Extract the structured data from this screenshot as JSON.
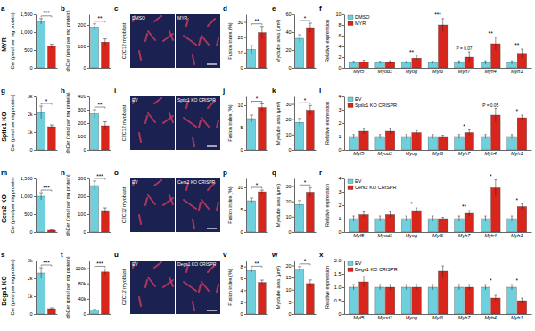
{
  "chart_data": [
    {
      "panel": "a",
      "type": "bar",
      "ylabel": "Cer (pmol per mg protein)",
      "categories": [
        null,
        null
      ],
      "values": [
        1300,
        600
      ],
      "errors": [
        80,
        60
      ],
      "colors": [
        "#6dd0dc",
        "#d9261c"
      ],
      "ylim": [
        0,
        1500
      ],
      "yticks": [
        0,
        500,
        {
          "value": 1000,
          "label": "1,000"
        },
        {
          "value": 1500,
          "label": "1,500"
        }
      ],
      "annotations": [
        {
          "text": "***"
        }
      ]
    },
    {
      "panel": "b",
      "type": "bar",
      "ylabel": "dhCer (pmol per mg protein)",
      "categories": [
        null,
        null
      ],
      "values": [
        190,
        120
      ],
      "errors": [
        15,
        15
      ],
      "colors": [
        "#6dd0dc",
        "#d9261c"
      ],
      "ylim": [
        0,
        250
      ],
      "yticks": [
        0,
        100,
        200
      ],
      "annotations": [
        {
          "text": "**"
        }
      ]
    },
    {
      "panel": "d",
      "type": "bar",
      "ylabel": "Fusion index (%)",
      "categories": [
        null,
        null
      ],
      "values": [
        12,
        23
      ],
      "errors": [
        2.5,
        4
      ],
      "colors": [
        "#6dd0dc",
        "#d9261c"
      ],
      "ylim": [
        0,
        35
      ],
      "yticks": [
        0,
        10,
        20,
        30
      ],
      "annotations": [
        {
          "text": "**"
        }
      ]
    },
    {
      "panel": "e",
      "type": "bar",
      "ylabel": "Myotube area (μm²)",
      "categories": [
        null,
        null
      ],
      "values": [
        33,
        45
      ],
      "errors": [
        4,
        5
      ],
      "colors": [
        "#6dd0dc",
        "#d9261c"
      ],
      "ylim": [
        0,
        60
      ],
      "yticks": [
        0,
        20,
        40,
        60
      ],
      "annotations": [
        {
          "text": "*"
        }
      ]
    },
    {
      "panel": "f",
      "type": "bar",
      "ylabel": "Relative expression",
      "categories": [
        "Myf5",
        "Myod1",
        "Myog",
        "Myf6",
        "Myh7",
        "Myh4",
        "Myh1"
      ],
      "series": [
        {
          "name": "DMSO",
          "color": "#6dd0dc",
          "values": [
            1,
            1,
            1,
            1,
            1,
            1,
            1
          ],
          "errors": [
            0.2,
            0.2,
            0.2,
            0.2,
            0.3,
            0.3,
            0.3
          ]
        },
        {
          "name": "MYR",
          "color": "#d9261c",
          "values": [
            1.1,
            1.0,
            1.8,
            8,
            2,
            4.5,
            2.7
          ],
          "errors": [
            0.3,
            0.3,
            0.4,
            1.2,
            1.0,
            1.2,
            0.8
          ]
        }
      ],
      "ylim": [
        0,
        10
      ],
      "yticks": [
        0,
        2,
        4,
        6,
        8,
        10
      ],
      "legend": "upper left",
      "annotations": [
        {
          "category": "Myog",
          "text": "**"
        },
        {
          "category": "Myf6",
          "text": "***"
        },
        {
          "category": "Myh7",
          "text": "P = 0.07"
        },
        {
          "category": "Myh4",
          "text": "**"
        },
        {
          "category": "Myh1",
          "text": "**"
        }
      ]
    },
    {
      "panel": "g",
      "type": "bar",
      "ylabel": "Cer (pmol per mg protein)",
      "categories": [
        null,
        null
      ],
      "values": [
        2100,
        1300
      ],
      "errors": [
        350,
        100
      ],
      "colors": [
        "#6dd0dc",
        "#d9261c"
      ],
      "ylim": [
        0,
        3000
      ],
      "yticks": [
        0,
        {
          "value": 1000,
          "label": "1k"
        },
        {
          "value": 2000,
          "label": "2k"
        },
        {
          "value": 3000,
          "label": "3k"
        }
      ],
      "annotations": [
        {
          "text": "*"
        }
      ]
    },
    {
      "panel": "h",
      "type": "bar",
      "ylabel": "dhCer (pmol per mg protein)",
      "categories": [
        null,
        null
      ],
      "values": [
        270,
        180
      ],
      "errors": [
        30,
        30
      ],
      "colors": [
        "#6dd0dc",
        "#d9261c"
      ],
      "ylim": [
        0,
        400
      ],
      "yticks": [
        0,
        100,
        200,
        300,
        400
      ],
      "annotations": [
        {
          "text": "**"
        }
      ]
    },
    {
      "panel": "j",
      "type": "bar",
      "ylabel": "Fusion index (%)",
      "categories": [
        null,
        null
      ],
      "values": [
        7,
        9.5
      ],
      "errors": [
        0.8,
        0.8
      ],
      "colors": [
        "#6dd0dc",
        "#d9261c"
      ],
      "ylim": [
        0,
        12
      ],
      "yticks": [
        0,
        5,
        10
      ],
      "annotations": [
        {
          "text": "*"
        }
      ]
    },
    {
      "panel": "k",
      "type": "bar",
      "ylabel": "Myotube area (μm²)",
      "categories": [
        null,
        null
      ],
      "values": [
        18,
        26
      ],
      "errors": [
        2.5,
        3
      ],
      "colors": [
        "#6dd0dc",
        "#d9261c"
      ],
      "ylim": [
        0,
        35
      ],
      "yticks": [
        0,
        10,
        20,
        30
      ],
      "annotations": [
        {
          "text": "*"
        }
      ]
    },
    {
      "panel": "l",
      "type": "bar",
      "ylabel": "Relative expression",
      "categories": [
        "Myf5",
        "Myod1",
        "Myog",
        "Myf6",
        "Myh7",
        "Myh4",
        "Myh1"
      ],
      "series": [
        {
          "name": "EV",
          "color": "#6dd0dc",
          "values": [
            1,
            1,
            1,
            1,
            1,
            1,
            1
          ],
          "errors": [
            0.15,
            0.15,
            0.15,
            0.15,
            0.15,
            0.15,
            0.15
          ]
        },
        {
          "name": "Sptlc1 KO CRISPR",
          "color": "#d9261c",
          "values": [
            1.4,
            1.4,
            1.3,
            1.0,
            1.3,
            2.6,
            2.4
          ],
          "errors": [
            0.2,
            0.2,
            0.15,
            0.1,
            0.2,
            0.5,
            0.2
          ]
        }
      ],
      "ylim": [
        0,
        4
      ],
      "yticks": [
        0,
        1,
        2,
        3,
        4
      ],
      "legend": "upper left",
      "annotations": [
        {
          "category": "Myh7",
          "text": "*"
        },
        {
          "category": "Myh4",
          "text": "P = 0.05"
        },
        {
          "category": "Myh1",
          "text": "*"
        }
      ]
    },
    {
      "panel": "m",
      "type": "bar",
      "ylabel": "Cer (pmol per mg protein)",
      "categories": [
        null,
        null
      ],
      "values": [
        1000,
        50
      ],
      "errors": [
        100,
        10
      ],
      "colors": [
        "#6dd0dc",
        "#d9261c"
      ],
      "ylim": [
        0,
        1500
      ],
      "yticks": [
        0,
        500,
        {
          "value": 1000,
          "label": "1,000"
        },
        {
          "value": 1500,
          "label": "1,500"
        }
      ],
      "annotations": [
        {
          "text": "***"
        }
      ]
    },
    {
      "panel": "n",
      "type": "bar",
      "ylabel": "dhCer (pmol per mg protein)",
      "categories": [
        null,
        null
      ],
      "values": [
        260,
        120
      ],
      "errors": [
        25,
        15
      ],
      "colors": [
        "#6dd0dc",
        "#d9261c"
      ],
      "ylim": [
        0,
        300
      ],
      "yticks": [
        0,
        100,
        200,
        300
      ],
      "annotations": [
        {
          "text": "***"
        }
      ]
    },
    {
      "panel": "p",
      "type": "bar",
      "ylabel": "Fusion index (%)",
      "categories": [
        null,
        null
      ],
      "values": [
        7,
        9
      ],
      "errors": [
        0.6,
        0.4
      ],
      "colors": [
        "#6dd0dc",
        "#d9261c"
      ],
      "ylim": [
        0,
        12
      ],
      "yticks": [
        0,
        5,
        10
      ],
      "annotations": [
        {
          "text": "*"
        }
      ]
    },
    {
      "panel": "q",
      "type": "bar",
      "ylabel": "Myotube area (μm²)",
      "categories": [
        null,
        null
      ],
      "values": [
        18,
        26
      ],
      "errors": [
        2.5,
        3
      ],
      "colors": [
        "#6dd0dc",
        "#d9261c"
      ],
      "ylim": [
        0,
        35
      ],
      "yticks": [
        0,
        10,
        20,
        30
      ],
      "annotations": [
        {
          "text": "*"
        }
      ]
    },
    {
      "panel": "r",
      "type": "bar",
      "ylabel": "Relative expression",
      "categories": [
        "Myf5",
        "Myod1",
        "Myog",
        "Myf6",
        "Myh7",
        "Myh4",
        "Myh1"
      ],
      "series": [
        {
          "name": "EV",
          "color": "#6dd0dc",
          "values": [
            1,
            1,
            1,
            1,
            1,
            1,
            1
          ],
          "errors": [
            0.2,
            0.2,
            0.2,
            0.2,
            0.2,
            0.2,
            0.2
          ]
        },
        {
          "name": "Cers2 KO CRISPR",
          "color": "#d9261c",
          "values": [
            1.3,
            1.3,
            1.6,
            1.0,
            1.4,
            3.3,
            1.9
          ],
          "errors": [
            0.2,
            0.2,
            0.2,
            0.1,
            0.2,
            0.6,
            0.2
          ]
        }
      ],
      "ylim": [
        0,
        4
      ],
      "yticks": [
        0,
        1,
        2,
        3,
        4
      ],
      "legend": "upper left",
      "annotations": [
        {
          "category": "Myog",
          "text": "*"
        },
        {
          "category": "Myh7",
          "text": "**"
        },
        {
          "category": "Myh4",
          "text": "*"
        },
        {
          "category": "Myh1",
          "text": "*"
        }
      ]
    },
    {
      "panel": "s",
      "type": "bar",
      "ylabel": "Cer (pmol per mg protein)",
      "categories": [
        null,
        null
      ],
      "values": [
        2300,
        300
      ],
      "errors": [
        300,
        50
      ],
      "colors": [
        "#6dd0dc",
        "#d9261c"
      ],
      "ylim": [
        0,
        3000
      ],
      "yticks": [
        0,
        {
          "value": 1000,
          "label": "1k"
        },
        {
          "value": 2000,
          "label": "2k"
        },
        {
          "value": 3000,
          "label": "3k"
        }
      ],
      "annotations": [
        {
          "text": "***"
        }
      ]
    },
    {
      "panel": "t",
      "type": "bar",
      "ylabel": "dhCer (pmol per mg protein)",
      "categories": [
        null,
        null
      ],
      "values": [
        10000,
        110000
      ],
      "errors": [
        2000,
        8000
      ],
      "colors": [
        "#6dd0dc",
        "#d9261c"
      ],
      "ylim": [
        0,
        140000
      ],
      "yticks": [
        0,
        {
          "value": 40000,
          "label": "40k"
        },
        {
          "value": 80000,
          "label": "80k"
        },
        {
          "value": 120000,
          "label": "120k"
        }
      ],
      "annotations": [
        {
          "text": "***"
        }
      ]
    },
    {
      "panel": "v",
      "type": "bar",
      "ylabel": "Fusion index (%)",
      "categories": [
        null,
        null
      ],
      "values": [
        7.3,
        5.3
      ],
      "errors": [
        0.3,
        0.4
      ],
      "colors": [
        "#6dd0dc",
        "#d9261c"
      ],
      "ylim": [
        0,
        9
      ],
      "yticks": [
        0,
        2,
        4,
        6,
        8
      ],
      "annotations": [
        {
          "text": "**"
        }
      ]
    },
    {
      "panel": "w",
      "type": "bar",
      "ylabel": "Myotube area (μm²)",
      "categories": [
        null,
        null
      ],
      "values": [
        18.5,
        12.5
      ],
      "errors": [
        1,
        1.5
      ],
      "colors": [
        "#6dd0dc",
        "#d9261c"
      ],
      "ylim": [
        0,
        22
      ],
      "yticks": [
        0,
        5,
        10,
        15,
        20
      ],
      "annotations": [
        {
          "text": "*"
        }
      ]
    },
    {
      "panel": "x",
      "type": "bar",
      "ylabel": "Relative expression",
      "categories": [
        "Myf5",
        "Myod1",
        "Myog",
        "Myf6",
        "Myh7",
        "Myh4",
        "Myh1"
      ],
      "series": [
        {
          "name": "EV",
          "color": "#6dd0dc",
          "values": [
            1,
            1,
            1,
            1,
            1,
            1,
            1
          ],
          "errors": [
            0.1,
            0.1,
            0.1,
            0.1,
            0.1,
            0.1,
            0.1
          ]
        },
        {
          "name": "Degs1 KO CRISPR",
          "color": "#d9261c",
          "values": [
            1.2,
            1.0,
            1.0,
            1.6,
            1.0,
            0.6,
            0.5
          ],
          "errors": [
            0.2,
            0.1,
            0.1,
            0.2,
            0.1,
            0.1,
            0.1
          ]
        }
      ],
      "ylim": [
        0,
        2
      ],
      "yticks": [
        0,
        0.5,
        {
          "value": 1,
          "label": "1.0"
        },
        1.5,
        {
          "value": 2,
          "label": "2.0"
        }
      ],
      "legend": "upper left",
      "annotations": [
        {
          "category": "Myh4",
          "text": "*"
        },
        {
          "category": "Myh1",
          "text": "*"
        }
      ]
    }
  ],
  "row_labels": [
    "MYR",
    "Sptlc1 KO",
    "Cers2 KO",
    "Degs1 KO"
  ],
  "images": [
    {
      "panel": "c",
      "side_label": "C2C12 myoblast",
      "labels": [
        "DMSO",
        "MYR"
      ]
    },
    {
      "panel": "i",
      "side_label": "C2C12 myoblast",
      "labels": [
        "EV",
        "Sptlc1 KO CRISPR"
      ]
    },
    {
      "panel": "o",
      "side_label": "C2C12 myoblast",
      "labels": [
        "EV",
        "Cers2 KO CRISPR"
      ]
    },
    {
      "panel": "u",
      "side_label": "C2C12 myoblast",
      "labels": [
        "EV",
        "Degs1 KO CRISPR"
      ]
    }
  ]
}
